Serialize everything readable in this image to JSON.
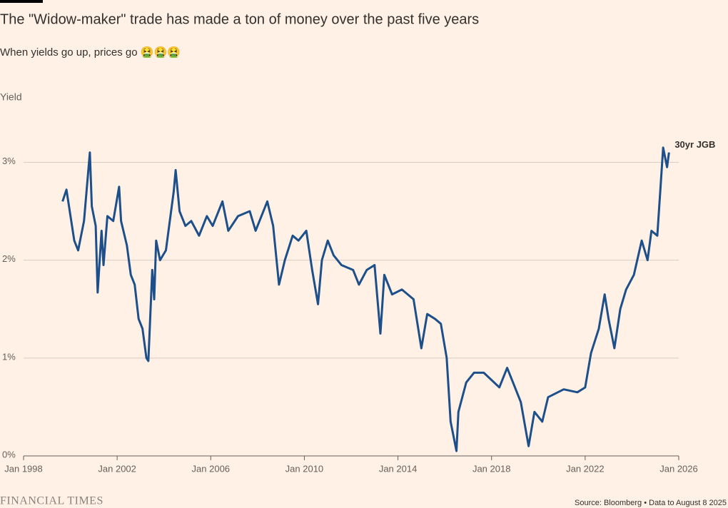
{
  "chart_data": {
    "type": "line",
    "title": "The \"Widow-maker\" trade has made a ton of money over the past five years",
    "subtitle": "When yields go up, prices go 🤮🤮🤮",
    "y_label": "Yield",
    "source": "Source: Bloomberg • Data to August 8 2025",
    "brand": "FINANCIAL TIMES",
    "grid": true,
    "xlim": [
      "1998-01",
      "2026-01"
    ],
    "xticks": [
      {
        "value": "1998-01",
        "label": "Jan 1998"
      },
      {
        "value": "2002-01",
        "label": "Jan 2002"
      },
      {
        "value": "2006-01",
        "label": "Jan 2006"
      },
      {
        "value": "2010-01",
        "label": "Jan 2010"
      },
      {
        "value": "2014-01",
        "label": "Jan 2014"
      },
      {
        "value": "2018-01",
        "label": "Jan 2018"
      },
      {
        "value": "2022-01",
        "label": "Jan 2022"
      },
      {
        "value": "2026-01",
        "label": "Jan 2026"
      }
    ],
    "ylim": [
      0,
      3.2
    ],
    "yticks": [
      {
        "value": 0,
        "label": "0%"
      },
      {
        "value": 1,
        "label": "1%"
      },
      {
        "value": 2,
        "label": "2%"
      },
      {
        "value": 3,
        "label": "3%"
      }
    ],
    "x": [
      "1999-09",
      "1999-11",
      "2000-03",
      "2000-05",
      "2000-08",
      "2000-11",
      "2000-12",
      "2001-02",
      "2001-03",
      "2001-05",
      "2001-06",
      "2001-08",
      "2001-11",
      "2002-02",
      "2002-03",
      "2002-06",
      "2002-08",
      "2002-10",
      "2002-12",
      "2003-02",
      "2003-04",
      "2003-05",
      "2003-07",
      "2003-08",
      "2003-09",
      "2003-11",
      "2004-02",
      "2004-04",
      "2004-06",
      "2004-07",
      "2004-09",
      "2004-12",
      "2005-03",
      "2005-07",
      "2005-11",
      "2006-02",
      "2006-07",
      "2006-10",
      "2007-03",
      "2007-09",
      "2007-12",
      "2008-06",
      "2008-09",
      "2008-12",
      "2009-03",
      "2009-07",
      "2009-10",
      "2010-02",
      "2010-05",
      "2010-08",
      "2010-10",
      "2011-01",
      "2011-04",
      "2011-08",
      "2012-02",
      "2012-05",
      "2012-09",
      "2013-01",
      "2013-04",
      "2013-06",
      "2013-10",
      "2014-03",
      "2014-09",
      "2015-01",
      "2015-04",
      "2015-08",
      "2015-11",
      "2016-02",
      "2016-04",
      "2016-07",
      "2016-08",
      "2016-12",
      "2017-04",
      "2017-09",
      "2018-05",
      "2018-09",
      "2018-12",
      "2019-04",
      "2019-08",
      "2019-11",
      "2020-03",
      "2020-06",
      "2021-02",
      "2021-09",
      "2022-01",
      "2022-04",
      "2022-08",
      "2022-11",
      "2023-01",
      "2023-04",
      "2023-07",
      "2023-10",
      "2024-02",
      "2024-06",
      "2024-09",
      "2024-11",
      "2025-02",
      "2025-04",
      "2025-05",
      "2025-07",
      "2025-08"
    ],
    "series": [
      {
        "name": "30yr JGB",
        "color": "#1d4f8a",
        "values": [
          2.6,
          2.72,
          2.2,
          2.1,
          2.4,
          3.1,
          2.55,
          2.35,
          1.67,
          2.3,
          1.95,
          2.45,
          2.4,
          2.75,
          2.4,
          2.15,
          1.85,
          1.75,
          1.4,
          1.3,
          1.0,
          0.97,
          1.9,
          1.6,
          2.2,
          2.0,
          2.1,
          2.4,
          2.7,
          2.92,
          2.5,
          2.35,
          2.4,
          2.25,
          2.45,
          2.35,
          2.6,
          2.3,
          2.45,
          2.5,
          2.3,
          2.6,
          2.35,
          1.75,
          2.0,
          2.25,
          2.2,
          2.3,
          1.9,
          1.55,
          2.0,
          2.2,
          2.05,
          1.95,
          1.9,
          1.75,
          1.9,
          1.95,
          1.25,
          1.85,
          1.65,
          1.7,
          1.6,
          1.1,
          1.45,
          1.4,
          1.35,
          1.0,
          0.35,
          0.05,
          0.45,
          0.75,
          0.85,
          0.85,
          0.7,
          0.9,
          0.75,
          0.55,
          0.1,
          0.45,
          0.35,
          0.6,
          0.68,
          0.65,
          0.7,
          1.05,
          1.3,
          1.65,
          1.4,
          1.1,
          1.5,
          1.7,
          1.85,
          2.2,
          2.0,
          2.3,
          2.25,
          2.85,
          3.15,
          2.95,
          3.1
        ]
      }
    ]
  }
}
